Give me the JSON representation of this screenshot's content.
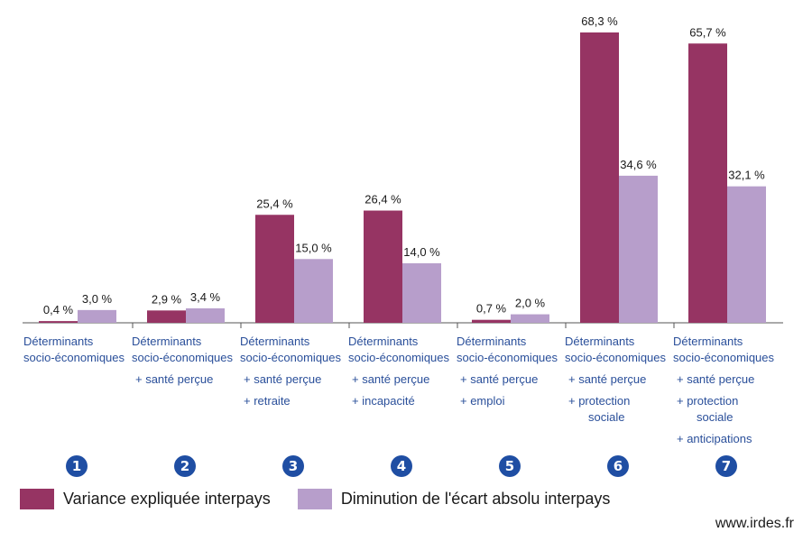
{
  "chart_data": {
    "type": "bar",
    "categories": [
      [
        "Déterminants",
        "socio-économiques"
      ],
      [
        "Déterminants",
        "socio-économiques",
        "+ santé perçue"
      ],
      [
        "Déterminants",
        "socio-économiques",
        "+ santé perçue",
        "+ retraite"
      ],
      [
        "Déterminants",
        "socio-économiques",
        "+ santé perçue",
        "+ incapacité"
      ],
      [
        "Déterminants",
        "socio-économiques",
        "+ santé perçue",
        "+ emploi"
      ],
      [
        "Déterminants",
        "socio-économiques",
        "+ santé perçue",
        "+ protection",
        "sociale"
      ],
      [
        "Déterminants",
        "socio-économiques",
        "+ santé perçue",
        "+ protection",
        "sociale",
        "+ anticipations"
      ]
    ],
    "numbers": [
      "1",
      "2",
      "3",
      "4",
      "5",
      "6",
      "7"
    ],
    "series": [
      {
        "name": "Variance expliquée interpays",
        "color": "#963463",
        "values": [
          0.4,
          2.9,
          25.4,
          26.4,
          0.7,
          68.3,
          65.7
        ],
        "labels": [
          "0,4 %",
          "2,9 %",
          "25,4 %",
          "26,4 %",
          "0,7 %",
          "68,3 %",
          "65,7 %"
        ]
      },
      {
        "name": "Diminution de l'écart absolu interpays",
        "color": "#b79ecb",
        "values": [
          3.0,
          3.4,
          15.0,
          14.0,
          2.0,
          34.6,
          32.1
        ],
        "labels": [
          "3,0 %",
          "3,4 %",
          "15,0 %",
          "14,0 %",
          "2,0 %",
          "34,6 %",
          "32,1 %"
        ]
      }
    ],
    "ylim": [
      0,
      70
    ],
    "grid": false,
    "legend_position": "bottom-left",
    "source": "www.irdes.fr"
  }
}
